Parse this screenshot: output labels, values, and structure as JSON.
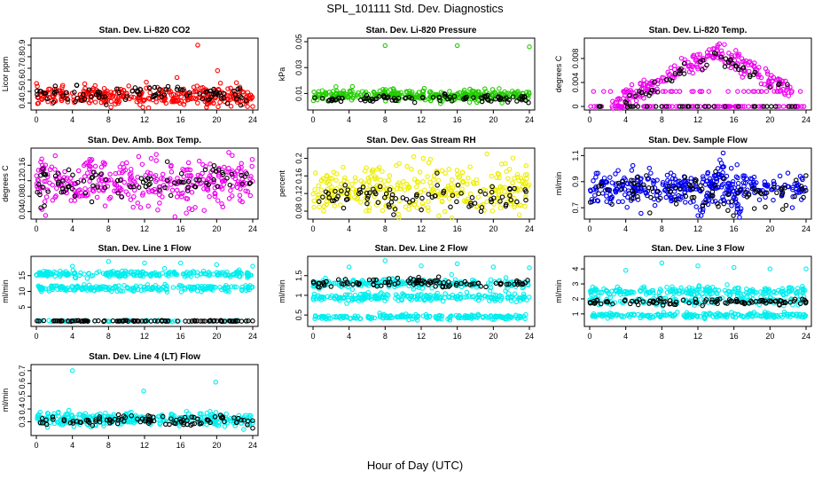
{
  "figure": {
    "title": "SPL_101111  Std. Dev. Diagnostics",
    "xlabel": "Hour of Day (UTC)"
  },
  "chart_data": [
    {
      "type": "scatter",
      "title": "Stan. Dev. Li-820 CO2",
      "ylabel": "Licor ppm",
      "xlim": [
        0,
        24
      ],
      "xticks": [
        0,
        4,
        8,
        12,
        16,
        20,
        24
      ],
      "ylim": [
        0.37,
        0.93
      ],
      "yticks": [
        0.4,
        0.5,
        0.6,
        0.7,
        0.8,
        0.9
      ],
      "color": "#ff0000",
      "series": [
        {
          "color": "#ff0000",
          "bands": [
            {
              "center": 0.46,
              "spread": 0.04,
              "n": 340
            }
          ],
          "outliers": [
            {
              "x": 17.9,
              "y": 0.9
            },
            {
              "x": 20.1,
              "y": 0.68
            },
            {
              "x": 15.6,
              "y": 0.62
            },
            {
              "x": 12.2,
              "y": 0.58
            },
            {
              "x": 24.0,
              "y": 0.37
            }
          ]
        },
        {
          "color": "#000000",
          "bands": [
            {
              "center": 0.47,
              "spread": 0.035,
              "n": 90
            }
          ],
          "outliers": []
        }
      ]
    },
    {
      "type": "scatter",
      "title": "Stan. Dev. Li-820 Pressure",
      "ylabel": "kPa",
      "xlim": [
        0,
        24
      ],
      "xticks": [
        0,
        4,
        8,
        12,
        16,
        20,
        24
      ],
      "ylim": [
        0.0,
        0.05
      ],
      "yticks": [
        0.01,
        0.03,
        0.05
      ],
      "color": "#00dd00",
      "series": [
        {
          "color": "#22cc00",
          "bands": [
            {
              "center": 0.0085,
              "spread": 0.0022,
              "n": 340
            }
          ],
          "outliers": [
            {
              "x": 8.0,
              "y": 0.047
            },
            {
              "x": 16.0,
              "y": 0.047
            },
            {
              "x": 24.0,
              "y": 0.046
            }
          ]
        },
        {
          "color": "#000000",
          "bands": [
            {
              "center": 0.006,
              "spread": 0.0015,
              "n": 90
            }
          ],
          "outliers": []
        }
      ]
    },
    {
      "type": "scatter",
      "title": "Stan. Dev. Li-820 Temp.",
      "ylabel": "degrees C",
      "xlim": [
        0,
        24
      ],
      "xticks": [
        0,
        4,
        8,
        12,
        16,
        20,
        24
      ],
      "ylim": [
        0.0,
        0.0108
      ],
      "yticks": [
        0.0,
        0.004,
        0.008
      ],
      "color": "#ee00ee",
      "series": [
        {
          "color": "#ee00ee",
          "bands": [
            {
              "center": 0.0,
              "spread": 0.0,
              "n": 90
            },
            {
              "center": 0.0025,
              "spread": 0.0,
              "n": 40
            }
          ],
          "hump": {
            "peak_x": 14.0,
            "peak_y": 0.0095,
            "start_x": 2.5,
            "end_x": 22.5,
            "spread": 0.0009,
            "n": 230
          },
          "outliers": []
        },
        {
          "color": "#000000",
          "bands": [
            {
              "center": 0.0,
              "spread": 0.0,
              "n": 30
            }
          ],
          "hump": {
            "peak_x": 14.0,
            "peak_y": 0.009,
            "start_x": 3.0,
            "end_x": 22.0,
            "spread": 0.0006,
            "n": 50
          },
          "outliers": []
        }
      ]
    },
    {
      "type": "scatter",
      "title": "Stan. Dev. Amb. Box Temp.",
      "ylabel": "degrees C",
      "xlim": [
        0,
        24
      ],
      "xticks": [
        0,
        4,
        8,
        12,
        16,
        20,
        24
      ],
      "ylim": [
        0.03,
        0.195
      ],
      "yticks": [
        0.04,
        0.08,
        0.12,
        0.16
      ],
      "color": "#ee00ee",
      "series": [
        {
          "color": "#ee00ee",
          "bands": [
            {
              "center": 0.115,
              "spread": 0.03,
              "n": 340
            }
          ],
          "outliers": [
            {
              "x": 13.3,
              "y": 0.188
            },
            {
              "x": 0.6,
              "y": 0.176
            }
          ]
        },
        {
          "color": "#000000",
          "bands": [
            {
              "center": 0.115,
              "spread": 0.02,
              "n": 90
            }
          ],
          "outliers": [
            {
              "x": 0.5,
              "y": 0.05
            },
            {
              "x": 0.9,
              "y": 0.055
            }
          ]
        }
      ]
    },
    {
      "type": "scatter",
      "title": "Stan. Dev. Gas Stream RH",
      "ylabel": "percent",
      "xlim": [
        0,
        24
      ],
      "xticks": [
        0,
        4,
        8,
        12,
        16,
        20,
        24
      ],
      "ylim": [
        0.07,
        0.215
      ],
      "yticks": [
        0.08,
        0.12,
        0.16,
        0.2
      ],
      "color": "#ffff00",
      "series": [
        {
          "color": "#eeee00",
          "bands": [
            {
              "center": 0.125,
              "spread": 0.03,
              "n": 340
            }
          ],
          "outliers": [
            {
              "x": 19.3,
              "y": 0.21
            }
          ]
        },
        {
          "color": "#000000",
          "bands": [
            {
              "center": 0.11,
              "spread": 0.018,
              "n": 90
            }
          ],
          "outliers": []
        }
      ]
    },
    {
      "type": "scatter",
      "title": "Stan. Dev. Sample Flow",
      "ylabel": "ml/min",
      "xlim": [
        0,
        24
      ],
      "xticks": [
        0,
        4,
        8,
        12,
        16,
        20,
        24
      ],
      "ylim": [
        0.64,
        1.13
      ],
      "yticks": [
        0.7,
        0.9,
        1.1
      ],
      "color": "#0000ff",
      "series": [
        {
          "color": "#0000ee",
          "bands": [
            {
              "center": 0.86,
              "spread": 0.06,
              "n": 340
            }
          ],
          "hump": {
            "peak_x": 14.5,
            "peak_y": 1.0,
            "start_x": 12.0,
            "end_x": 17.0,
            "spread": 0.05,
            "n": 60
          },
          "outliers": [
            {
              "x": 14.8,
              "y": 1.12
            }
          ]
        },
        {
          "color": "#000000",
          "bands": [
            {
              "center": 0.82,
              "spread": 0.06,
              "n": 90
            }
          ],
          "outliers": []
        }
      ]
    },
    {
      "type": "scatter",
      "title": "Stan. Dev. Line 1 Flow",
      "ylabel": "ml/min",
      "xlim": [
        0,
        24
      ],
      "xticks": [
        0,
        4,
        8,
        12,
        16,
        20,
        24
      ],
      "ylim": [
        0.0,
        20.0
      ],
      "yticks": [
        5,
        10,
        15
      ],
      "color": "#00eeee",
      "series": [
        {
          "color": "#00eeee",
          "bands": [
            {
              "center": 15.5,
              "spread": 0.5,
              "n": 220
            },
            {
              "center": 11.0,
              "spread": 0.5,
              "n": 220
            },
            {
              "center": 0.6,
              "spread": 0.1,
              "n": 60
            }
          ],
          "outliers": [
            {
              "x": 4.0,
              "y": 18.0
            },
            {
              "x": 8.0,
              "y": 19.5
            },
            {
              "x": 12.0,
              "y": 19.0
            },
            {
              "x": 16.0,
              "y": 19.0
            },
            {
              "x": 20.0,
              "y": 18.5
            },
            {
              "x": 24.0,
              "y": 18.0
            }
          ]
        },
        {
          "color": "#000000",
          "bands": [
            {
              "center": 0.6,
              "spread": 0.08,
              "n": 100
            }
          ],
          "outliers": []
        }
      ]
    },
    {
      "type": "scatter",
      "title": "Stan. Dev. Line 2 Flow",
      "ylabel": "ml/min",
      "xlim": [
        0,
        24
      ],
      "xticks": [
        0,
        4,
        8,
        12,
        16,
        20,
        24
      ],
      "ylim": [
        0.3,
        1.9
      ],
      "yticks": [
        0.5,
        1.0,
        1.5
      ],
      "color": "#00eeee",
      "series": [
        {
          "color": "#00eeee",
          "bands": [
            {
              "center": 1.3,
              "spread": 0.06,
              "n": 220
            },
            {
              "center": 0.95,
              "spread": 0.05,
              "n": 220
            },
            {
              "center": 0.45,
              "spread": 0.03,
              "n": 200
            }
          ],
          "outliers": [
            {
              "x": 4.0,
              "y": 1.72
            },
            {
              "x": 8.0,
              "y": 1.88
            },
            {
              "x": 12.0,
              "y": 1.75
            },
            {
              "x": 16.0,
              "y": 1.8
            },
            {
              "x": 20.0,
              "y": 1.72
            },
            {
              "x": 24.0,
              "y": 1.7
            }
          ]
        },
        {
          "color": "#000000",
          "bands": [
            {
              "center": 1.3,
              "spread": 0.07,
              "n": 100
            }
          ],
          "outliers": []
        }
      ]
    },
    {
      "type": "scatter",
      "title": "Stan. Dev. Line 3 Flow",
      "ylabel": "ml/min",
      "xlim": [
        0,
        24
      ],
      "xticks": [
        0,
        4,
        8,
        12,
        16,
        20,
        24
      ],
      "ylim": [
        0.4,
        4.6
      ],
      "yticks": [
        1,
        2,
        3,
        4
      ],
      "color": "#00eeee",
      "series": [
        {
          "color": "#00eeee",
          "bands": [
            {
              "center": 2.5,
              "spread": 0.15,
              "n": 220
            },
            {
              "center": 1.85,
              "spread": 0.12,
              "n": 150
            },
            {
              "center": 0.9,
              "spread": 0.08,
              "n": 200
            }
          ],
          "outliers": [
            {
              "x": 4.0,
              "y": 3.9
            },
            {
              "x": 8.0,
              "y": 4.4
            },
            {
              "x": 12.0,
              "y": 4.2
            },
            {
              "x": 16.0,
              "y": 4.1
            },
            {
              "x": 20.0,
              "y": 4.0
            },
            {
              "x": 24.0,
              "y": 4.0
            }
          ]
        },
        {
          "color": "#000000",
          "bands": [
            {
              "center": 1.8,
              "spread": 0.1,
              "n": 100
            }
          ],
          "outliers": []
        }
      ]
    },
    {
      "type": "scatter",
      "title": "Stan. Dev. Line 4 (LT) Flow",
      "ylabel": "ml/min",
      "xlim": [
        0,
        24
      ],
      "xticks": [
        0,
        4,
        8,
        12,
        16,
        20,
        24
      ],
      "ylim": [
        0.22,
        0.72
      ],
      "yticks": [
        0.3,
        0.4,
        0.5,
        0.6,
        0.7
      ],
      "color": "#00eeee",
      "series": [
        {
          "color": "#00eeee",
          "bands": [
            {
              "center": 0.32,
              "spread": 0.025,
              "n": 360
            }
          ],
          "outliers": [
            {
              "x": 4.0,
              "y": 0.7
            },
            {
              "x": 11.9,
              "y": 0.54
            },
            {
              "x": 19.9,
              "y": 0.61
            },
            {
              "x": 23.0,
              "y": 0.24
            }
          ]
        },
        {
          "color": "#000000",
          "bands": [
            {
              "center": 0.31,
              "spread": 0.02,
              "n": 100
            }
          ],
          "outliers": [
            {
              "x": 24.0,
              "y": 0.25
            }
          ]
        }
      ]
    }
  ]
}
